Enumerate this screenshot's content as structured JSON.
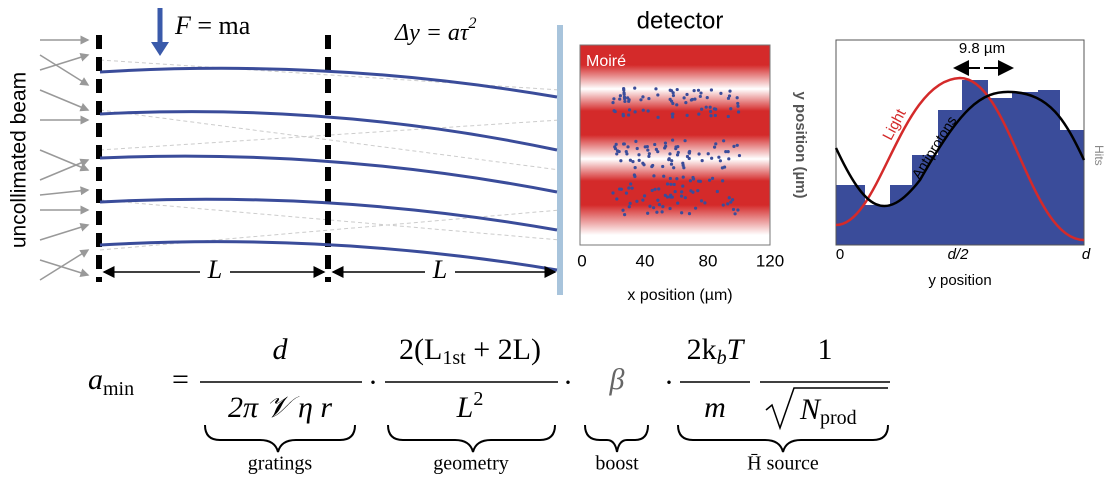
{
  "diagram": {
    "force_label": {
      "lhs": "F",
      "rhs": "= ma"
    },
    "deflection_label": {
      "main": "Δy = aτ",
      "sup": "2"
    },
    "beam_label": "uncollimated beam",
    "length_labels": [
      "L",
      "L"
    ]
  },
  "detector": {
    "title": "detector",
    "overlay": "Moiré",
    "xticks": [
      "0",
      "40",
      "80",
      "120"
    ],
    "xlabel": "x position (µm)",
    "ylabel": "y position (µm)"
  },
  "profile": {
    "width_label": "9.8 µm",
    "light_label": "Light",
    "antiproton_label": "Antiprotons",
    "xticks": [
      "0",
      "d/2",
      "d"
    ],
    "xlabel": "y position",
    "ylabel": "Hits"
  },
  "formula": {
    "lhs": "a",
    "lhs_sub": "min",
    "eq": "=",
    "dot": "·",
    "f1_num": "d",
    "f1_den": "2π 𝒱 η r",
    "f2_num_a": "2(L",
    "f2_num_sub": "1st",
    "f2_num_b": " + 2L)",
    "f2_den": "L",
    "f2_den_sup": "2",
    "beta": "β",
    "f3_num_a": "2k",
    "f3_num_sub": "b",
    "f3_num_b": "T",
    "f3_den": "m",
    "f4_num": "1",
    "f4_den": "N",
    "f4_den_sub": "prod",
    "braces": [
      "gratings",
      "geometry",
      "boost",
      "H̄ source"
    ]
  }
}
